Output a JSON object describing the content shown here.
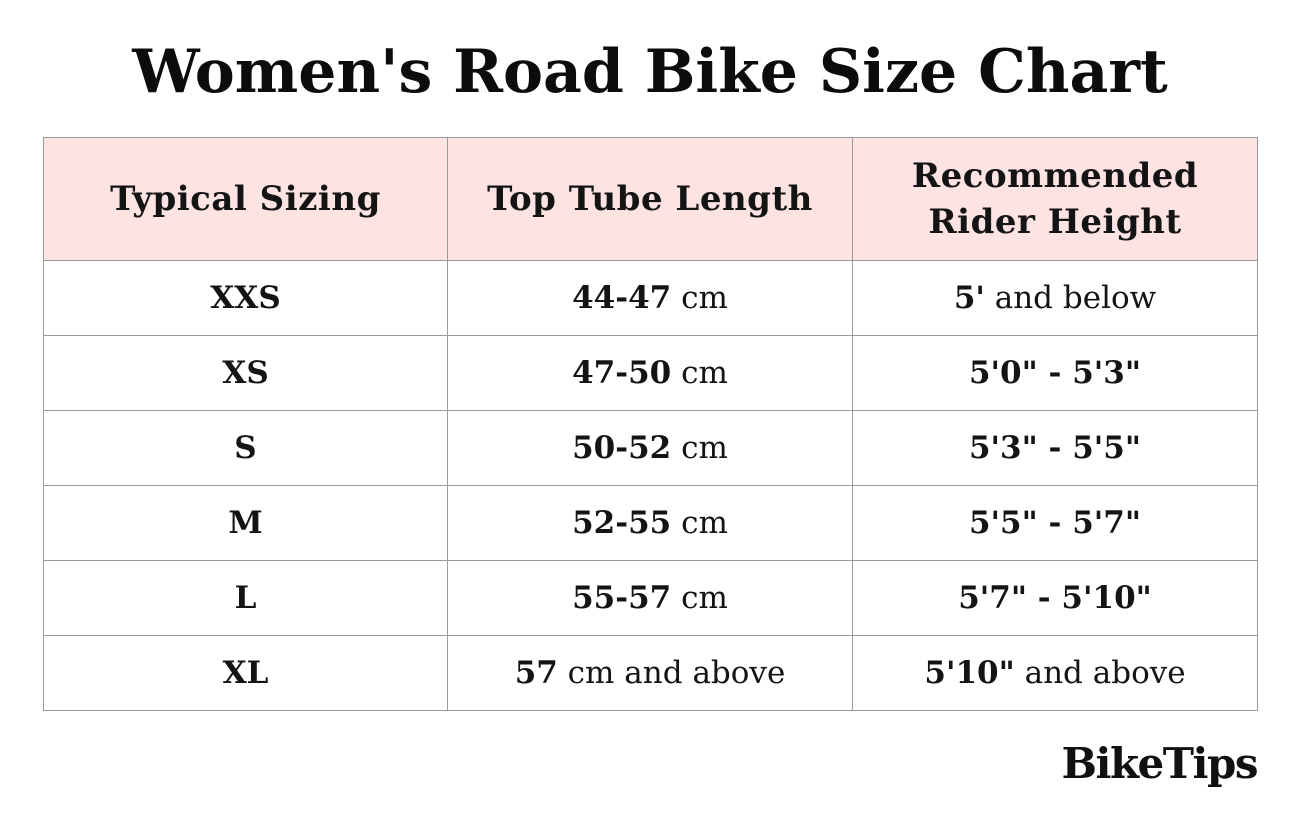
{
  "chart_data": {
    "type": "table",
    "title": "Women's Road Bike Size Chart",
    "columns": [
      "Typical Sizing",
      "Top Tube Length",
      "Recommended Rider Height"
    ],
    "header_lines": [
      [
        "Typical Sizing"
      ],
      [
        "Top Tube Length"
      ],
      [
        "Recommended",
        "Rider Height"
      ]
    ],
    "rows": [
      {
        "size": "XXS",
        "top_tube": {
          "value": "44-47",
          "rest": " cm"
        },
        "height": {
          "value": "5'",
          "rest": " and below"
        }
      },
      {
        "size": "XS",
        "top_tube": {
          "value": "47-50",
          "rest": " cm"
        },
        "height": {
          "value": "5'0\" - 5'3\"",
          "rest": ""
        }
      },
      {
        "size": "S",
        "top_tube": {
          "value": "50-52",
          "rest": " cm"
        },
        "height": {
          "value": "5'3\" - 5'5\"",
          "rest": ""
        }
      },
      {
        "size": "M",
        "top_tube": {
          "value": "52-55",
          "rest": " cm"
        },
        "height": {
          "value": "5'5\" - 5'7\"",
          "rest": ""
        }
      },
      {
        "size": "L",
        "top_tube": {
          "value": "55-57",
          "rest": " cm"
        },
        "height": {
          "value": "5'7\" - 5'10\"",
          "rest": ""
        }
      },
      {
        "size": "XL",
        "top_tube": {
          "value": "57",
          "rest": " cm and above"
        },
        "height": {
          "value": "5'10\"",
          "rest": " and above"
        }
      }
    ]
  },
  "brand": "BikeTips",
  "colors": {
    "header_background": "#fde3e1",
    "border": "#9a9a9a",
    "text": "#111111",
    "background": "#ffffff"
  }
}
